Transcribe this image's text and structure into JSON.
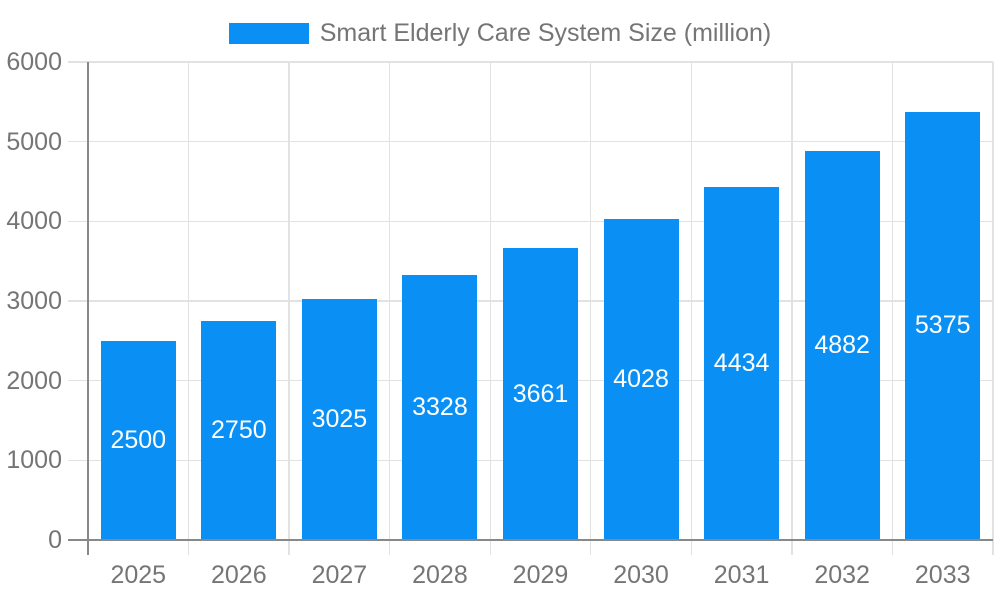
{
  "colors": {
    "bar": "#0a90f5",
    "bar_label": "#ffffff",
    "legend_text": "#757575",
    "tick_label": "#757575",
    "gridline": "#e2e2e2",
    "axis_line": "#888888",
    "background": "#ffffff"
  },
  "legend": {
    "label": "Smart Elderly Care System Size (million)"
  },
  "chart_data": {
    "type": "bar",
    "title": "Smart Elderly Care System Size (million)",
    "categories": [
      "2025",
      "2026",
      "2027",
      "2028",
      "2029",
      "2030",
      "2031",
      "2032",
      "2033"
    ],
    "values": [
      2500,
      2750,
      3025,
      3328,
      3661,
      4028,
      4434,
      4882,
      5375
    ],
    "xlabel": "",
    "ylabel": "",
    "ylim": [
      0,
      6000
    ],
    "yticks": [
      0,
      1000,
      2000,
      3000,
      4000,
      5000,
      6000
    ],
    "grid": true,
    "legend_position": "top",
    "bar_labels": "inside-center-white"
  }
}
